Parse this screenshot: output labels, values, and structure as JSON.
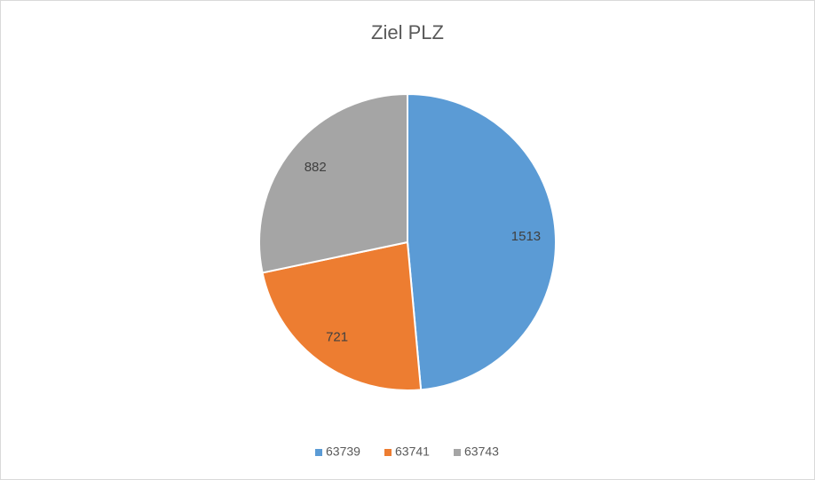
{
  "chart_data": {
    "type": "pie",
    "title": "Ziel PLZ",
    "categories": [
      "63739",
      "63741",
      "63743"
    ],
    "values": [
      1513,
      721,
      882
    ],
    "colors": [
      "#5b9bd5",
      "#ed7d31",
      "#a5a5a5"
    ],
    "legend": "bottom"
  }
}
